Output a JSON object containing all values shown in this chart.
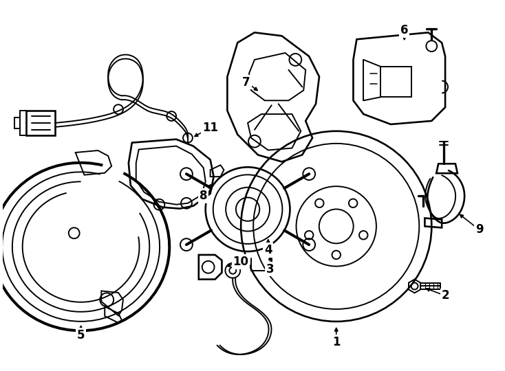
{
  "background_color": "#ffffff",
  "line_color": "#000000",
  "line_width": 1.4,
  "label_fontsize": 12,
  "fig_w": 7.34,
  "fig_h": 5.4
}
